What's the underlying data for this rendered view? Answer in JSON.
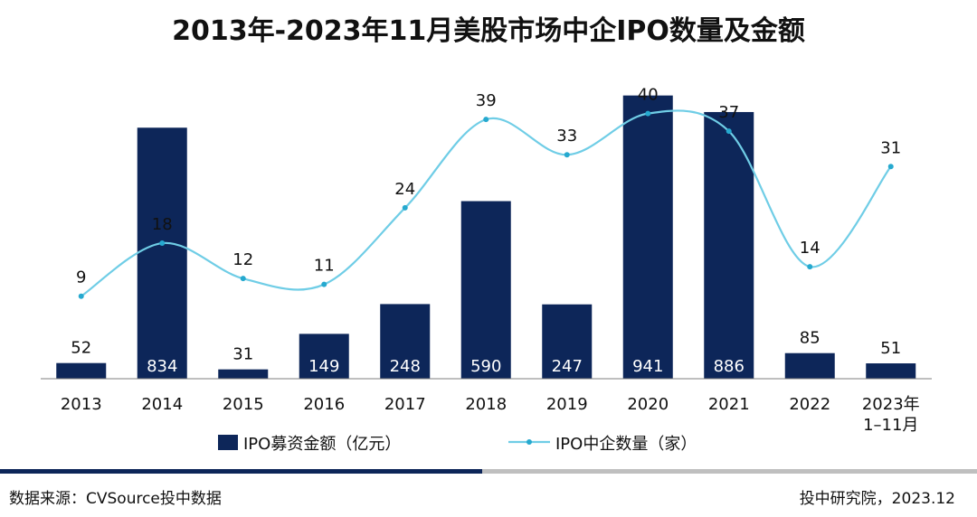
{
  "chart_data": {
    "type": "bar+line",
    "title": "2013年-2023年11月美股市场中企IPO数量及金额",
    "categories": [
      "2013",
      "2014",
      "2015",
      "2016",
      "2017",
      "2018",
      "2019",
      "2020",
      "2021",
      "2022",
      "2023年\n1–11月"
    ],
    "series": [
      {
        "name": "IPO募资金额（亿元）",
        "type": "bar",
        "color": "#0d2659",
        "values": [
          52,
          834,
          31,
          149,
          248,
          590,
          247,
          941,
          886,
          85,
          51
        ]
      },
      {
        "name": "IPO中企数量（家）",
        "type": "line",
        "color": "#6fcde6",
        "values": [
          9,
          18,
          12,
          11,
          24,
          39,
          33,
          40,
          37,
          14,
          31
        ]
      }
    ],
    "xlabel": "",
    "ylabel": "",
    "ylim_bar": [
      0,
      1000
    ],
    "ylim_line": [
      0,
      50
    ],
    "legend_position": "bottom"
  },
  "footer": {
    "source": "数据来源：CVSource投中数据",
    "credit": "投中研究院，2023.12"
  },
  "colors": {
    "bar": "#0d2659",
    "line": "#6fcde6",
    "rule_dark": "#0d2659",
    "rule_light": "#bfbfbf"
  }
}
